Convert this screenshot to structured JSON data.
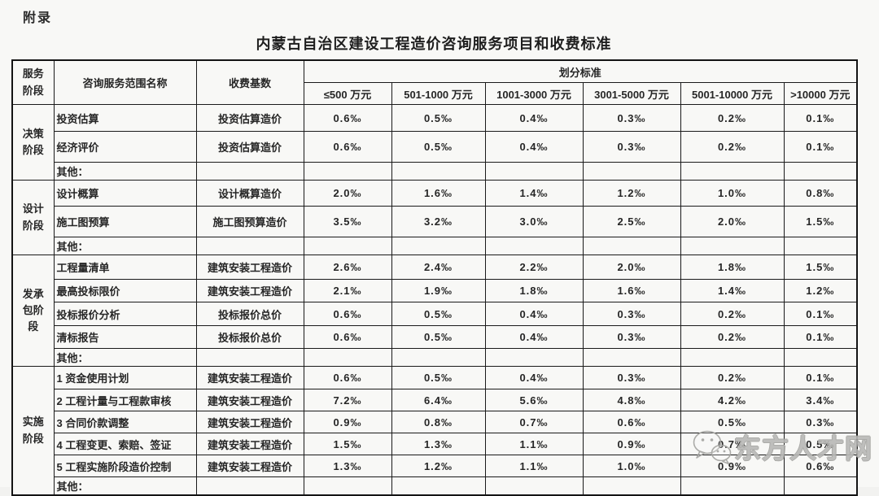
{
  "page": {
    "appendix_label": "附录",
    "title": "内蒙古自治区建设工程造价咨询服务项目和收费标准"
  },
  "table": {
    "headers": {
      "stage": "服务\n阶段",
      "scope": "咨询服务范围名称",
      "base": "收费基数",
      "division": "划分标准",
      "ranges": [
        "≤500 万元",
        "501-1000 万元",
        "1001-3000 万元",
        "3001-5000 万元",
        "5001-10000 万元",
        ">10000 万元"
      ]
    },
    "sections": [
      {
        "stage": "决策\n阶段",
        "rows": [
          {
            "scope": "投资估算",
            "base": "投资估算造价",
            "values": [
              "0.6‰",
              "0.5‰",
              "0.4‰",
              "0.3‰",
              "0.2‰",
              "0.1‰"
            ]
          },
          {
            "scope": "经济评价",
            "base": "投资估算造价",
            "values": [
              "0.6‰",
              "0.5‰",
              "0.4‰",
              "0.3‰",
              "0.2‰",
              "0.1‰"
            ]
          },
          {
            "scope": "其他：",
            "base": "",
            "values": [
              "",
              "",
              "",
              "",
              "",
              ""
            ]
          }
        ]
      },
      {
        "stage": "设计\n阶段",
        "rows": [
          {
            "scope": "设计概算",
            "base": "设计概算造价",
            "values": [
              "2.0‰",
              "1.6‰",
              "1.4‰",
              "1.2‰",
              "1.0‰",
              "0.8‰"
            ]
          },
          {
            "scope": "施工图预算",
            "base": "施工图预算造价",
            "values": [
              "3.5‰",
              "3.2‰",
              "3.0‰",
              "2.5‰",
              "2.0‰",
              "1.5‰"
            ]
          },
          {
            "scope": "其他：",
            "base": "",
            "values": [
              "",
              "",
              "",
              "",
              "",
              ""
            ]
          }
        ]
      },
      {
        "stage": "发承\n包阶\n段",
        "rows": [
          {
            "scope": "工程量清单",
            "base": "建筑安装工程造价",
            "values": [
              "2.6‰",
              "2.4‰",
              "2.2‰",
              "2.0‰",
              "1.8‰",
              "1.5‰"
            ]
          },
          {
            "scope": "最高投标限价",
            "base": "建筑安装工程造价",
            "values": [
              "2.1‰",
              "1.9‰",
              "1.8‰",
              "1.6‰",
              "1.4‰",
              "1.2‰"
            ]
          },
          {
            "scope": "投标报价分析",
            "base": "投标报价总价",
            "values": [
              "0.6‰",
              "0.5‰",
              "0.4‰",
              "0.3‰",
              "0.2‰",
              "0.1‰"
            ]
          },
          {
            "scope": "清标报告",
            "base": "投标报价总价",
            "values": [
              "0.6‰",
              "0.5‰",
              "0.4‰",
              "0.3‰",
              "0.2‰",
              "0.1‰"
            ]
          },
          {
            "scope": "其他：",
            "base": "",
            "values": [
              "",
              "",
              "",
              "",
              "",
              ""
            ]
          }
        ]
      },
      {
        "stage": "实施\n阶段",
        "rows": [
          {
            "scope": "1 资金使用计划",
            "base": "建筑安装工程造价",
            "values": [
              "0.6‰",
              "0.5‰",
              "0.4‰",
              "0.3‰",
              "0.2‰",
              "0.1‰"
            ]
          },
          {
            "scope": "2 工程计量与工程款审核",
            "base": "建筑安装工程造价",
            "values": [
              "7.2‰",
              "6.4‰",
              "5.6‰",
              "4.8‰",
              "4.2‰",
              "3.4‰"
            ]
          },
          {
            "scope": "3 合同价款调整",
            "base": "建筑安装工程造价",
            "values": [
              "0.9‰",
              "0.8‰",
              "0.7‰",
              "0.6‰",
              "0.5‰",
              "0.3‰"
            ]
          },
          {
            "scope": "4 工程变更、索赔、签证",
            "base": "建筑安装工程造价",
            "values": [
              "1.5‰",
              "1.3‰",
              "1.1‰",
              "0.9‰",
              "0.7‰",
              "0.5‰"
            ]
          },
          {
            "scope": "5 工程实施阶段造价控制",
            "base": "建筑安装工程造价",
            "values": [
              "1.3‰",
              "1.2‰",
              "1.1‰",
              "1.0‰",
              "0.9‰",
              "0.6‰"
            ]
          },
          {
            "scope": "其他：",
            "base": "",
            "values": [
              "",
              "",
              "",
              "",
              "",
              ""
            ]
          }
        ]
      }
    ]
  },
  "watermark": {
    "text": "东方人才网",
    "icon": "wechat-logo",
    "outline_color": "#a3a3a0"
  }
}
